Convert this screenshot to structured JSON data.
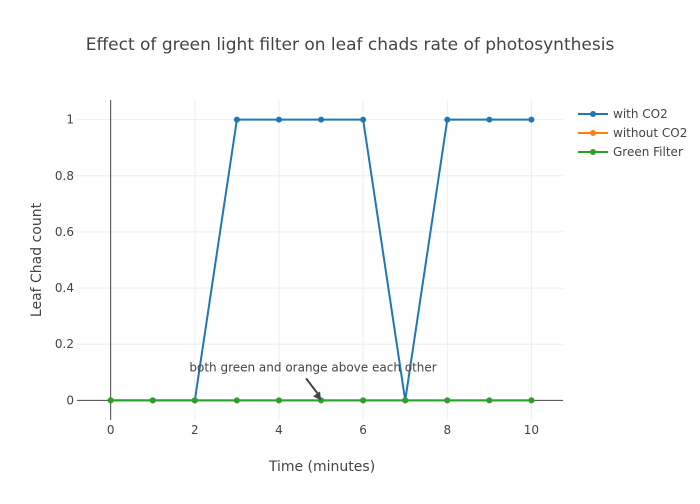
{
  "chart_data": {
    "type": "line",
    "title": "Effect of green light filter on leaf chads rate of photosynthesis",
    "xlabel": "Time (minutes)",
    "ylabel": "Leaf Chad count",
    "x": [
      0,
      1,
      2,
      3,
      4,
      5,
      6,
      7,
      8,
      9,
      10
    ],
    "xlim": [
      -0.8,
      10.75
    ],
    "ylim": [
      -0.07,
      1.07
    ],
    "x_ticks": [
      0,
      2,
      4,
      6,
      8,
      10
    ],
    "y_ticks": [
      0,
      0.2,
      0.4,
      0.6,
      0.8,
      1
    ],
    "grid": true,
    "legend_position": "top-right",
    "series": [
      {
        "name": "with CO2",
        "color": "#1f77b4",
        "values": [
          0,
          0,
          0,
          1,
          1,
          1,
          1,
          0,
          1,
          1,
          1
        ]
      },
      {
        "name": "without CO2",
        "color": "#ff7f0e",
        "values": [
          0,
          0,
          0,
          0,
          0,
          0,
          0,
          0,
          0,
          0,
          0
        ]
      },
      {
        "name": "Green Filter",
        "color": "#2ca02c",
        "values": [
          0,
          0,
          0,
          0,
          0,
          0,
          0,
          0,
          0,
          0,
          0
        ]
      }
    ],
    "annotations": [
      {
        "text": "both green and orange above each other",
        "x": 5,
        "y": 0,
        "arrow": true
      }
    ]
  }
}
